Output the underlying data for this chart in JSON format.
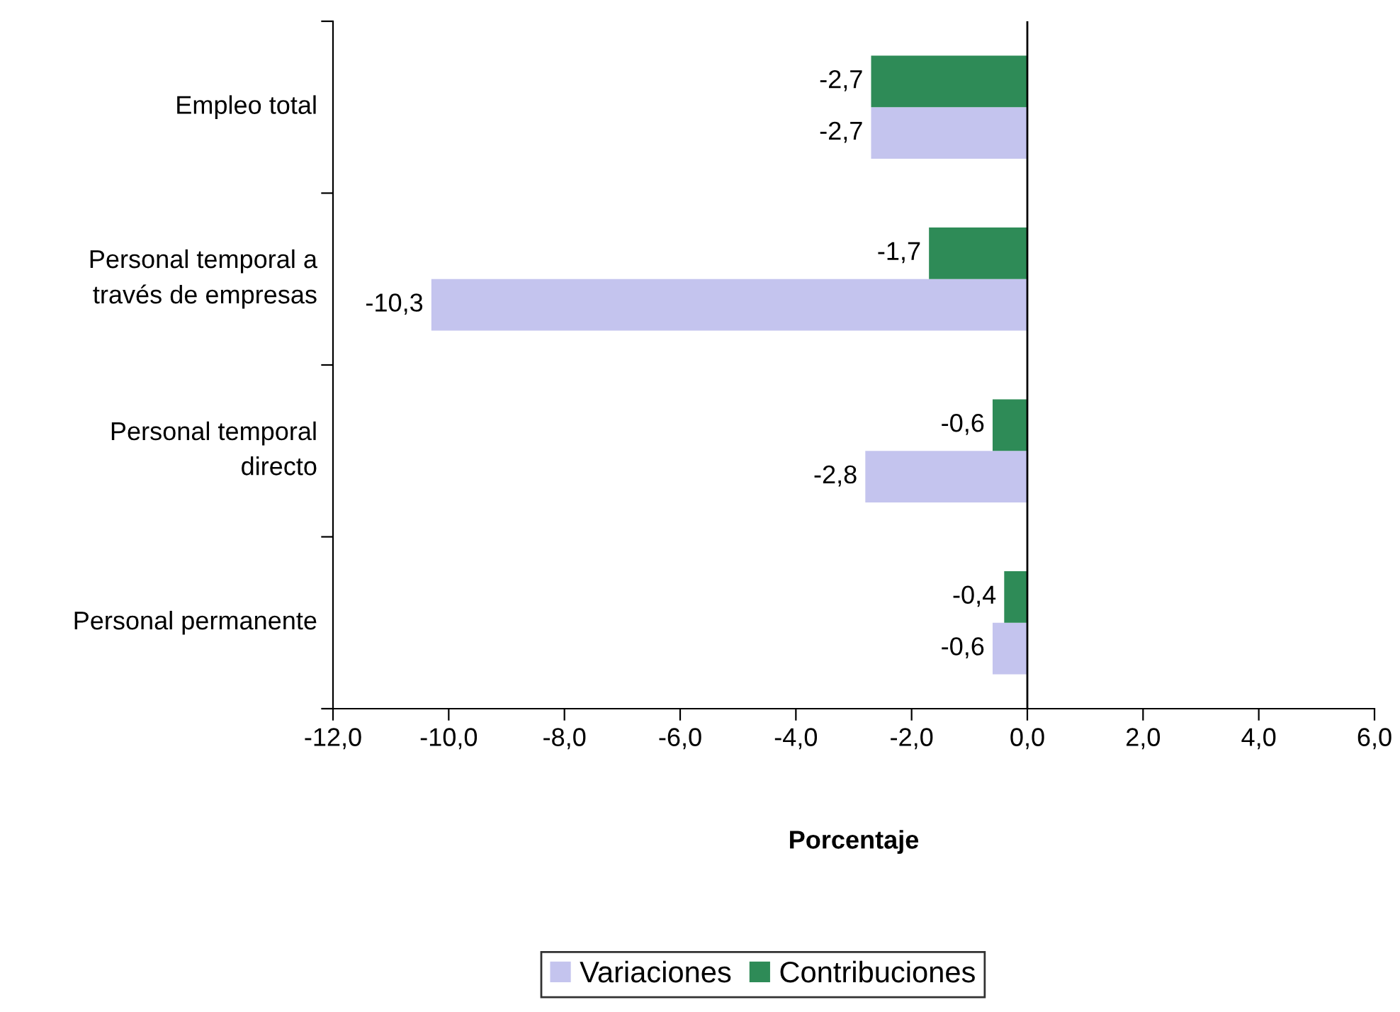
{
  "chart_data": {
    "type": "bar",
    "orientation": "horizontal",
    "xlabel": "Porcentaje",
    "categories": [
      "Empleo total",
      "Personal temporal a\ntravés de empresas",
      "Personal temporal\ndirecto",
      "Personal permanente"
    ],
    "series": [
      {
        "name": "Variaciones",
        "color": "#c4c4ee",
        "values": [
          -2.7,
          -10.3,
          -2.8,
          -0.6
        ],
        "value_labels": [
          "-2,7",
          "-10,3",
          "-2,8",
          "-0,6"
        ]
      },
      {
        "name": "Contribuciones",
        "color": "#2e8b57",
        "values": [
          -2.7,
          -1.7,
          -0.6,
          -0.4
        ],
        "value_labels": [
          "-2,7",
          "-1,7",
          "-0,6",
          "-0,4"
        ]
      }
    ],
    "xlim": [
      -12,
      6
    ],
    "xticks": [
      {
        "value": -12,
        "label": "-12,0"
      },
      {
        "value": -10,
        "label": "-10,0"
      },
      {
        "value": -8,
        "label": "-8,0"
      },
      {
        "value": -6,
        "label": "-6,0"
      },
      {
        "value": -4,
        "label": "-4,0"
      },
      {
        "value": -2,
        "label": "-2,0"
      },
      {
        "value": 0,
        "label": "0,0"
      },
      {
        "value": 2,
        "label": "2,0"
      },
      {
        "value": 4,
        "label": "4,0"
      },
      {
        "value": 6,
        "label": "6,0"
      }
    ],
    "ref_lines": [
      {
        "axis": "x",
        "value": 0,
        "color": "#000000"
      }
    ],
    "legend": "bottom"
  }
}
